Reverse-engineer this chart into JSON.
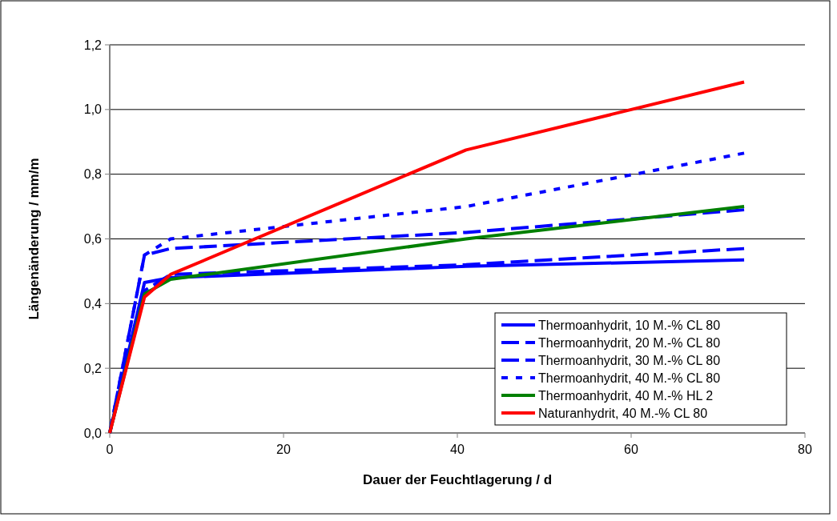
{
  "chart_data": {
    "type": "line",
    "xlabel": "Dauer der Feuchtlagerung / d",
    "ylabel": "Längenänderung / mm/m",
    "xlim": [
      0,
      80
    ],
    "xticks": [
      0,
      20,
      40,
      60,
      80
    ],
    "ylim": [
      0,
      1.2
    ],
    "yticks": [
      {
        "value": 0,
        "label": "0,0"
      },
      {
        "value": 0.2,
        "label": "0,2"
      },
      {
        "value": 0.4,
        "label": "0,4"
      },
      {
        "value": 0.6,
        "label": "0,6"
      },
      {
        "value": 0.8,
        "label": "0,8"
      },
      {
        "value": 1.0,
        "label": "1,0"
      },
      {
        "value": 1.2,
        "label": "1,2"
      }
    ],
    "x": [
      0,
      4,
      7,
      41,
      73
    ],
    "grid": "y",
    "legend": "bottom right",
    "marker": "none",
    "series": [
      {
        "name": "Thermoanhydrit, 10 M.-% CL 80",
        "color": "#0000ff",
        "line_style": "solid",
        "values": [
          0,
          0.465,
          0.48,
          0.515,
          0.535
        ]
      },
      {
        "name": "Thermoanhydrit, 20 M.-% CL 80",
        "color": "#0000ff",
        "line_style": "dashed",
        "values": [
          0,
          0.44,
          0.49,
          0.52,
          0.57
        ]
      },
      {
        "name": "Thermoanhydrit, 30 M.-% CL 80",
        "color": "#0000ff",
        "line_style": "dashed",
        "values": [
          0,
          0.55,
          0.57,
          0.62,
          0.69
        ]
      },
      {
        "name": "Thermoanhydrit, 40 M.-% CL 80",
        "color": "#0000ff",
        "line_style": "dotted",
        "values": [
          0,
          0.55,
          0.6,
          0.7,
          0.865
        ]
      },
      {
        "name": "Thermoanhydrit, 40 M.-% HL 2",
        "color": "#008000",
        "line_style": "solid",
        "values": [
          0,
          0.43,
          0.475,
          0.6,
          0.7
        ]
      },
      {
        "name": "Naturanhydrit, 40 M.-% CL 80",
        "color": "#ff0000",
        "line_style": "solid",
        "values": [
          0,
          0.42,
          0.49,
          0.875,
          1.085
        ]
      }
    ]
  }
}
